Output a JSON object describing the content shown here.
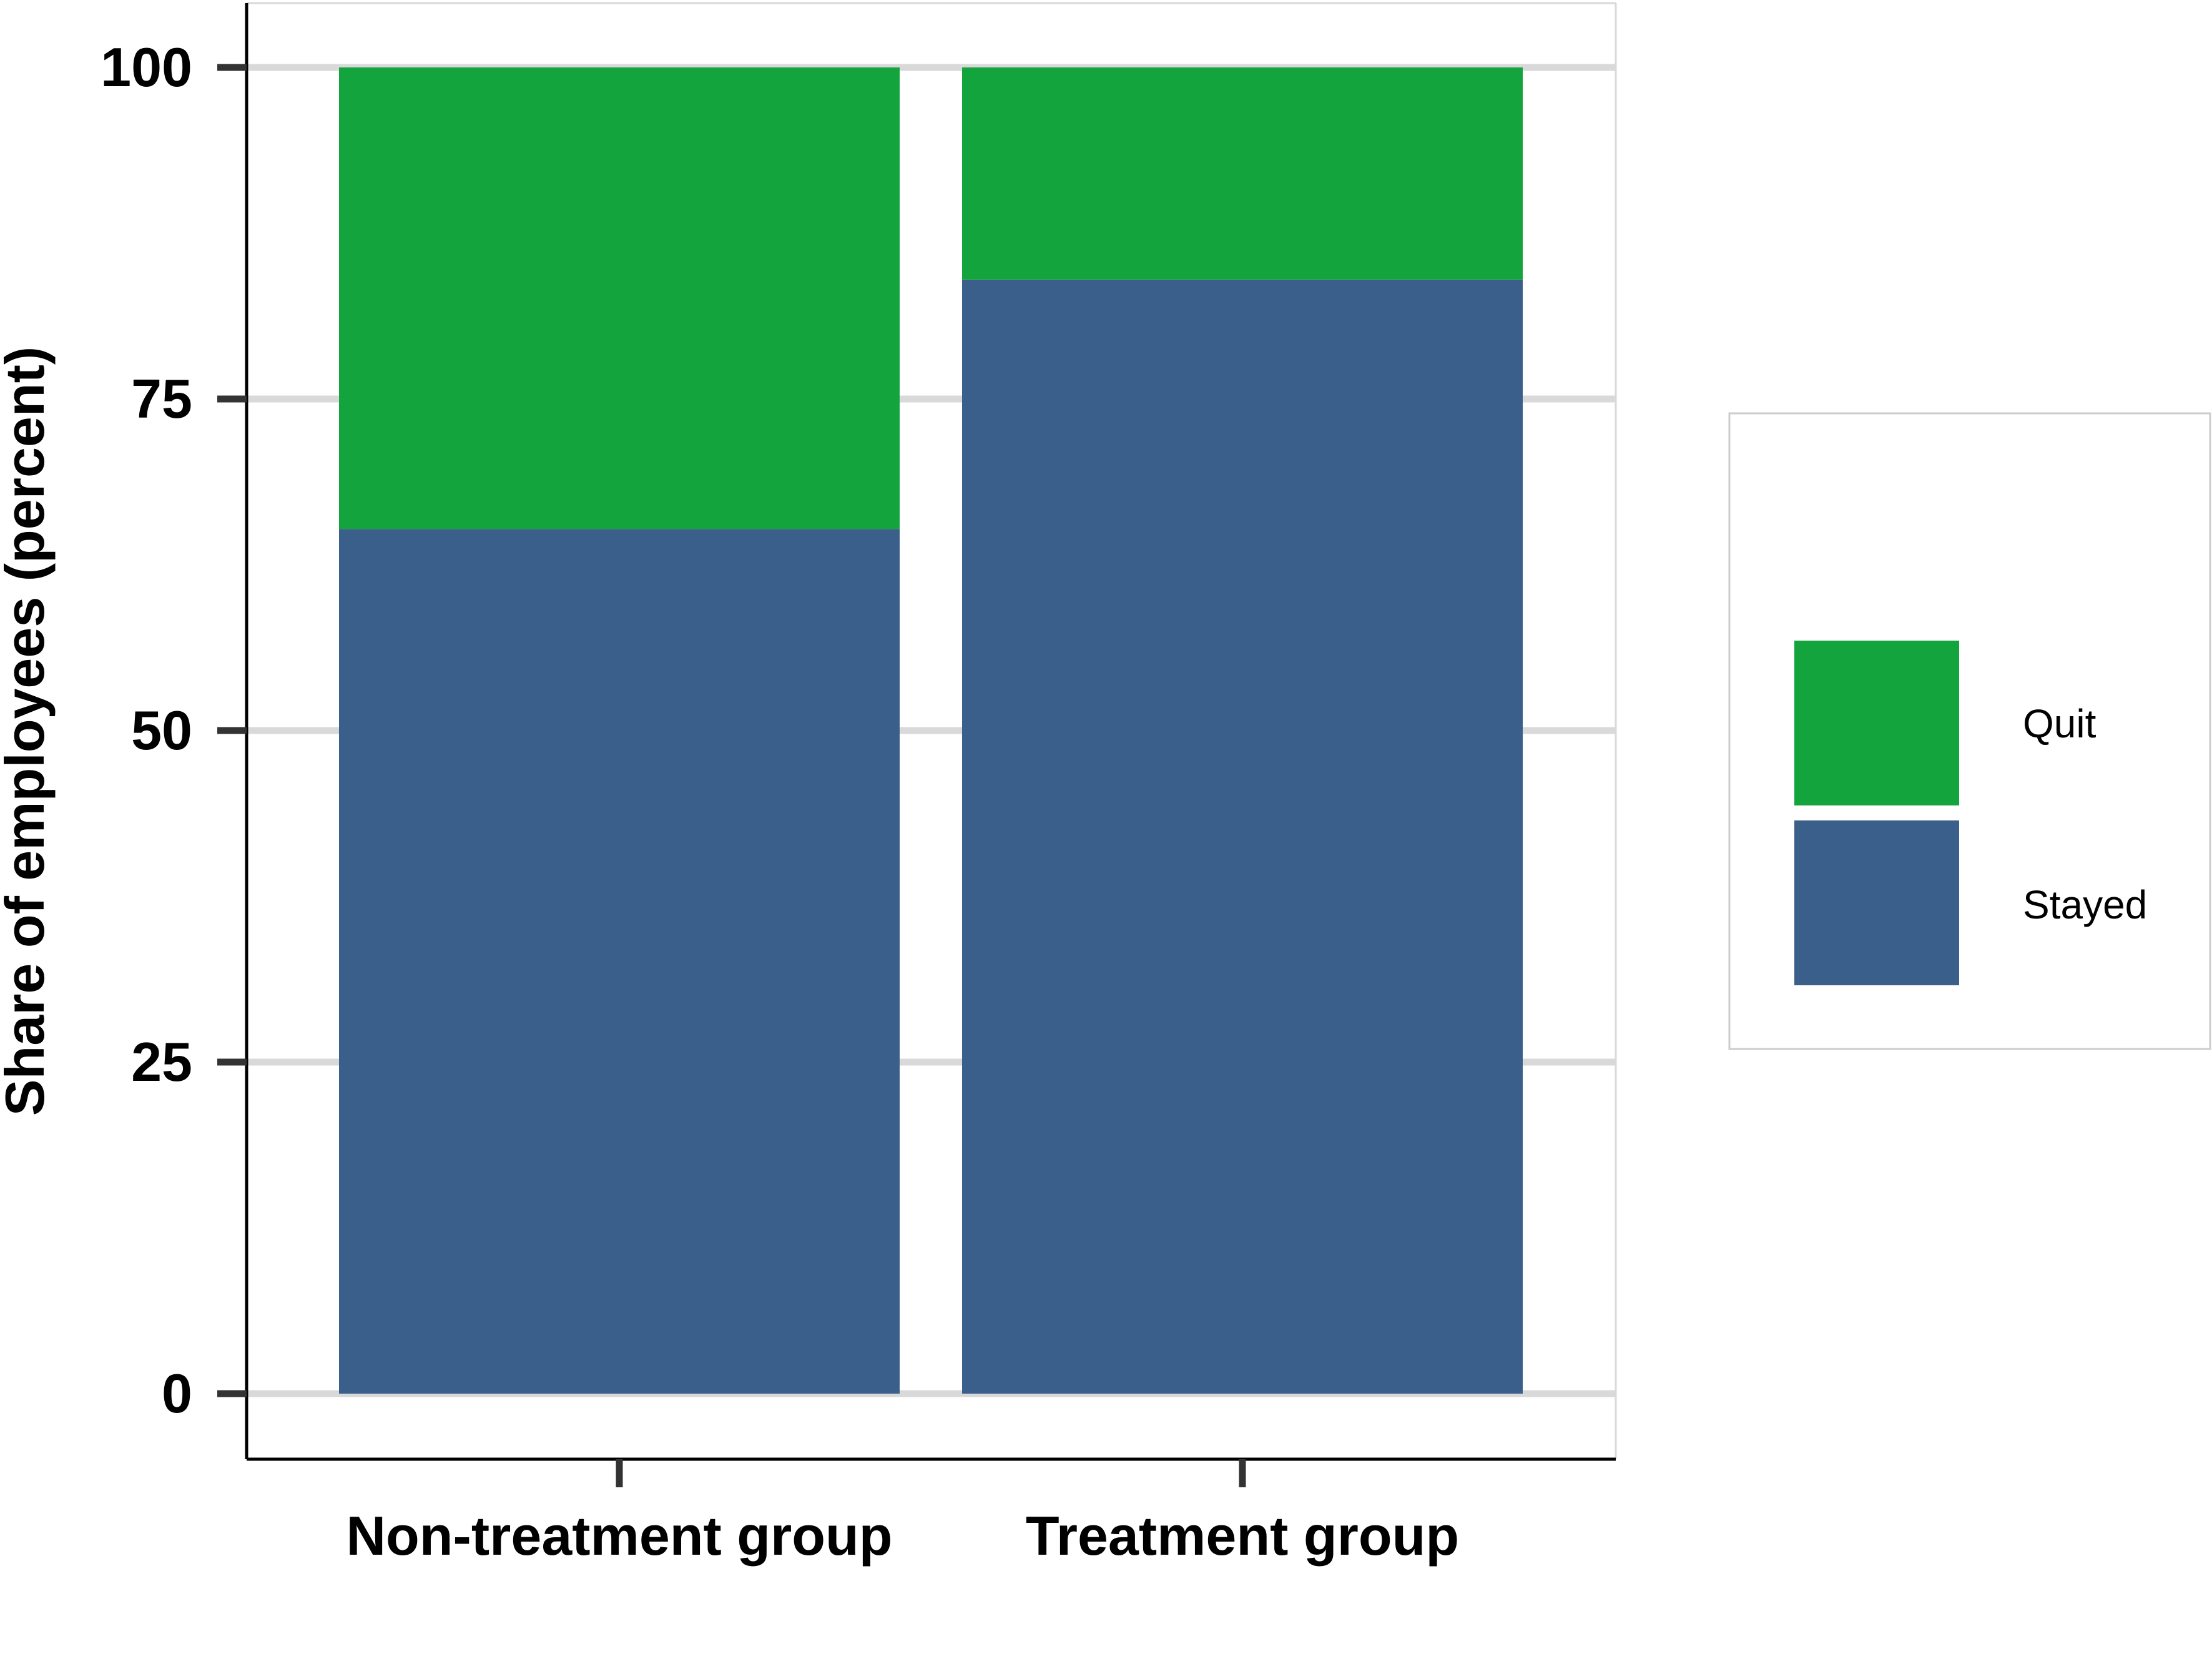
{
  "chart_data": {
    "type": "bar",
    "stacked": true,
    "categories": [
      "Non-treatment group",
      "Treatment group"
    ],
    "series": [
      {
        "name": "Stayed",
        "values": [
          65.2,
          84
        ],
        "color": "#3a5f8b"
      },
      {
        "name": "Quit",
        "values": [
          34.8,
          16
        ],
        "color": "#13a43d"
      }
    ],
    "ylabel": "Share of employees (percent)",
    "xlabel": "",
    "ylim": [
      0,
      100
    ],
    "yticks": [
      0,
      25,
      50,
      75,
      100
    ],
    "ytick_labels": [
      "0",
      "25",
      "50",
      "75",
      "100"
    ],
    "grid": "horizontal",
    "gridline_color": "#d9d9d9",
    "legend": {
      "position": "right",
      "entries": [
        {
          "label": "Quit",
          "color": "#13a43d"
        },
        {
          "label": "Stayed",
          "color": "#3a5f8b"
        }
      ]
    }
  }
}
